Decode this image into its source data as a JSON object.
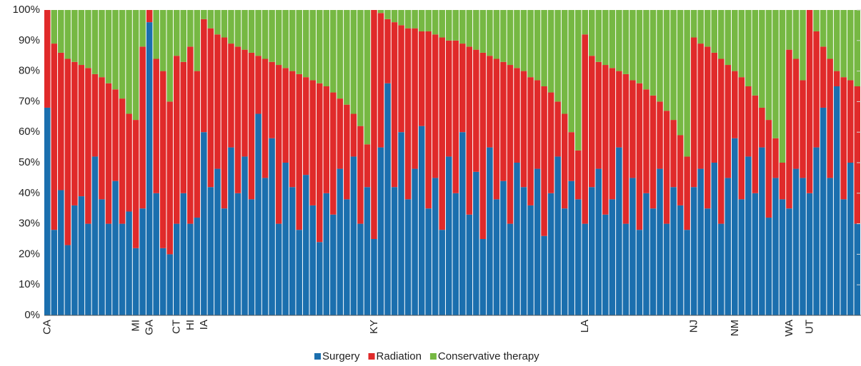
{
  "chart_data": {
    "type": "stacked_bar",
    "categories": [
      "CA",
      null,
      null,
      null,
      null,
      null,
      null,
      null,
      null,
      null,
      null,
      null,
      null,
      "MI",
      null,
      "GA",
      null,
      null,
      null,
      "CT",
      null,
      "HI",
      null,
      "IA",
      null,
      null,
      null,
      null,
      null,
      null,
      null,
      null,
      null,
      null,
      null,
      null,
      null,
      null,
      null,
      null,
      null,
      null,
      null,
      null,
      null,
      null,
      null,
      null,
      "KY",
      null,
      null,
      null,
      null,
      null,
      null,
      null,
      null,
      null,
      null,
      null,
      null,
      null,
      null,
      null,
      null,
      null,
      null,
      null,
      null,
      null,
      null,
      null,
      null,
      null,
      null,
      null,
      null,
      null,
      null,
      "LA",
      null,
      null,
      null,
      null,
      null,
      null,
      null,
      null,
      null,
      null,
      null,
      null,
      null,
      null,
      null,
      "NJ",
      null,
      null,
      null,
      null,
      null,
      "NM",
      null,
      null,
      null,
      null,
      null,
      null,
      null,
      "WA",
      null,
      null,
      "UT",
      null,
      null,
      null,
      null,
      null,
      null,
      null
    ],
    "series": [
      {
        "name": "Surgery",
        "color": "#1b6fae",
        "values": [
          68,
          28,
          41,
          23,
          36,
          39,
          30,
          52,
          38,
          30,
          44,
          30,
          34,
          22,
          35,
          96,
          40,
          22,
          20,
          30,
          40,
          30,
          32,
          60,
          42,
          48,
          35,
          55,
          40,
          52,
          38,
          66,
          45,
          58,
          30,
          50,
          42,
          28,
          46,
          36,
          24,
          40,
          33,
          48,
          38,
          52,
          30,
          42,
          25,
          55,
          76,
          42,
          60,
          38,
          48,
          62,
          35,
          45,
          28,
          52,
          40,
          60,
          33,
          47,
          25,
          55,
          38,
          44,
          30,
          50,
          42,
          36,
          48,
          26,
          40,
          52,
          35,
          44,
          38,
          30,
          42,
          48,
          33,
          38,
          55,
          30,
          45,
          28,
          40,
          35,
          48,
          30,
          42,
          36,
          28,
          42,
          48,
          35,
          50,
          30,
          45,
          58,
          38,
          52,
          40,
          55,
          32,
          45,
          38,
          35,
          48,
          45,
          40,
          55,
          68,
          45,
          75,
          38,
          50,
          30
        ]
      },
      {
        "name": "Radiation",
        "color": "#e02a2a",
        "values": [
          32,
          61,
          45,
          61,
          47,
          43,
          51,
          27,
          40,
          46,
          30,
          41,
          32,
          42,
          53,
          4,
          44,
          58,
          50,
          55,
          43,
          58,
          48,
          37,
          52,
          44,
          56,
          34,
          48,
          35,
          48,
          19,
          39,
          25,
          52,
          31,
          38,
          51,
          32,
          41,
          52,
          35,
          40,
          23,
          31,
          14,
          32,
          14,
          75,
          44,
          21,
          54,
          35,
          56,
          46,
          31,
          58,
          47,
          63,
          38,
          50,
          29,
          55,
          40,
          61,
          30,
          46,
          39,
          52,
          31,
          38,
          42,
          29,
          49,
          33,
          18,
          31,
          16,
          16,
          62,
          43,
          35,
          49,
          43,
          25,
          49,
          32,
          48,
          34,
          37,
          22,
          37,
          22,
          23,
          24,
          49,
          41,
          53,
          36,
          54,
          37,
          22,
          40,
          23,
          32,
          13,
          32,
          13,
          12,
          52,
          36,
          32,
          60,
          38,
          20,
          39,
          5,
          40,
          27,
          45
        ]
      },
      {
        "name": "Conservative therapy",
        "color": "#76b843",
        "values": [
          0,
          11,
          14,
          16,
          17,
          18,
          19,
          21,
          22,
          24,
          26,
          29,
          34,
          36,
          12,
          0,
          16,
          20,
          30,
          15,
          17,
          12,
          20,
          3,
          6,
          8,
          9,
          11,
          12,
          13,
          14,
          15,
          16,
          17,
          18,
          19,
          20,
          21,
          22,
          23,
          24,
          25,
          27,
          29,
          31,
          34,
          38,
          44,
          0,
          1,
          3,
          4,
          5,
          6,
          6,
          7,
          7,
          8,
          9,
          10,
          10,
          11,
          12,
          13,
          14,
          15,
          16,
          17,
          18,
          19,
          20,
          22,
          23,
          25,
          27,
          30,
          34,
          40,
          46,
          8,
          15,
          17,
          18,
          19,
          20,
          21,
          23,
          24,
          26,
          28,
          30,
          33,
          36,
          41,
          48,
          9,
          11,
          12,
          14,
          16,
          18,
          20,
          22,
          25,
          28,
          32,
          36,
          42,
          50,
          13,
          16,
          23,
          0,
          7,
          12,
          16,
          20,
          22,
          23,
          25
        ]
      }
    ],
    "ylim": [
      0,
      100
    ],
    "yticks": [
      {
        "value": 0,
        "label": "0%"
      },
      {
        "value": 10,
        "label": "10%"
      },
      {
        "value": 20,
        "label": "20%"
      },
      {
        "value": 30,
        "label": "30%"
      },
      {
        "value": 40,
        "label": "40%"
      },
      {
        "value": 50,
        "label": "50%"
      },
      {
        "value": 60,
        "label": "60%"
      },
      {
        "value": 70,
        "label": "70%"
      },
      {
        "value": 80,
        "label": "80%"
      },
      {
        "value": 90,
        "label": "90%"
      },
      {
        "value": 100,
        "label": "100%"
      }
    ],
    "grid": true
  }
}
